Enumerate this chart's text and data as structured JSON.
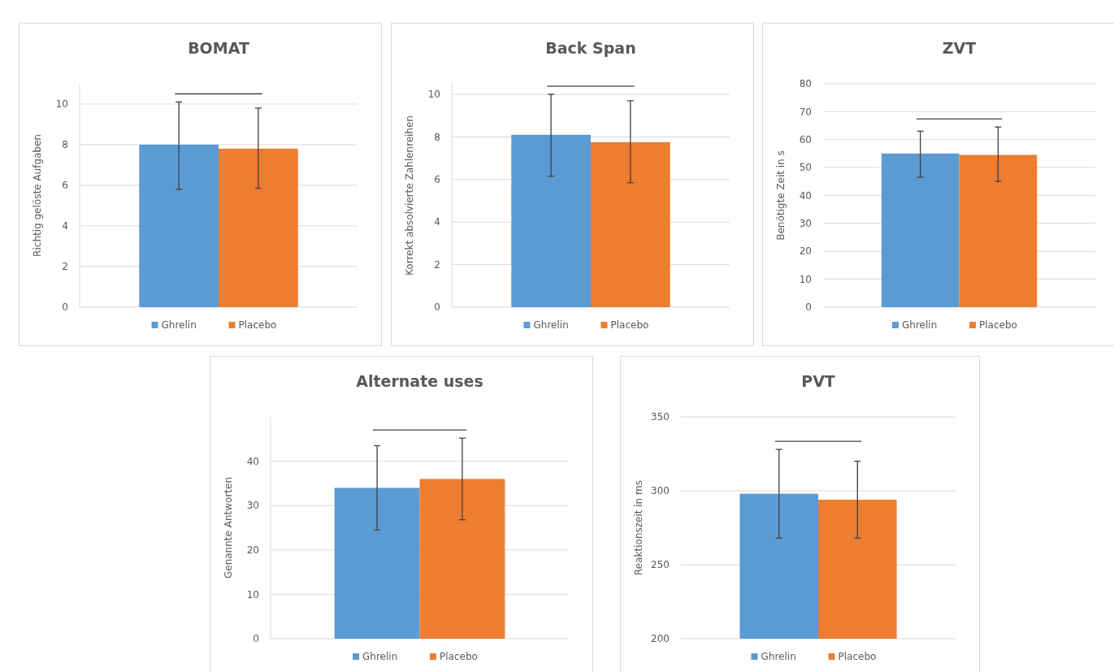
{
  "chart_data": [
    {
      "type": "bar",
      "title": "BOMAT",
      "ylabel": "Richtig gelöste Aufgaben",
      "categories": [
        null
      ],
      "ylim": [
        0,
        11
      ],
      "yticks": [
        0,
        2,
        4,
        6,
        8,
        10
      ],
      "grid": "y",
      "legend": "bottom",
      "series": [
        {
          "name": "Ghrelin",
          "color": "#5b9bd5",
          "values": [
            8.0
          ],
          "errors": [
            [
              5.8,
              10.1
            ]
          ]
        },
        {
          "name": "Placebo",
          "color": "#ed7d31",
          "values": [
            7.8
          ],
          "errors": [
            [
              5.85,
              9.8
            ]
          ]
        }
      ]
    },
    {
      "type": "bar",
      "title": "Back Span",
      "ylabel": "Korrekt absolvierte Zahlenreihen",
      "categories": [
        null
      ],
      "ylim": [
        0,
        10.5
      ],
      "yticks": [
        0,
        2,
        4,
        6,
        8,
        10
      ],
      "grid": "y",
      "legend": "bottom",
      "series": [
        {
          "name": "Ghrelin",
          "color": "#5b9bd5",
          "values": [
            8.1
          ],
          "errors": [
            [
              6.15,
              10.0
            ]
          ]
        },
        {
          "name": "Placebo",
          "color": "#ed7d31",
          "values": [
            7.75
          ],
          "errors": [
            [
              5.85,
              9.7
            ]
          ]
        }
      ]
    },
    {
      "type": "bar",
      "title": "ZVT",
      "ylabel": "Benötigte Zeit in s",
      "categories": [
        null
      ],
      "ylim": [
        0,
        80
      ],
      "yticks": [
        0,
        10,
        20,
        30,
        40,
        50,
        60,
        70,
        80
      ],
      "grid": "y",
      "legend": "bottom",
      "series": [
        {
          "name": "Ghrelin",
          "color": "#5b9bd5",
          "values": [
            55
          ],
          "errors": [
            [
              46.5,
              63
            ]
          ]
        },
        {
          "name": "Placebo",
          "color": "#ed7d31",
          "values": [
            54.5
          ],
          "errors": [
            [
              45,
              64.5
            ]
          ]
        }
      ]
    },
    {
      "type": "bar",
      "title": "Alternate uses",
      "ylabel": "Genannte Antworten",
      "categories": [
        null
      ],
      "ylim": [
        0,
        50
      ],
      "yticks": [
        0,
        10,
        20,
        30,
        40
      ],
      "grid": "y",
      "legend": "bottom",
      "series": [
        {
          "name": "Ghrelin",
          "color": "#5b9bd5",
          "values": [
            34
          ],
          "errors": [
            [
              24.5,
              43.5
            ]
          ]
        },
        {
          "name": "Placebo",
          "color": "#ed7d31",
          "values": [
            36
          ],
          "errors": [
            [
              26.8,
              45.2
            ]
          ]
        }
      ]
    },
    {
      "type": "bar",
      "title": "PVT",
      "ylabel": "Reaktionszeit in ms",
      "categories": [
        null
      ],
      "ylim": [
        200,
        350
      ],
      "yticks": [
        200,
        250,
        300,
        350
      ],
      "grid": "y",
      "legend": "bottom",
      "series": [
        {
          "name": "Ghrelin",
          "color": "#5b9bd5",
          "values": [
            298
          ],
          "errors": [
            [
              268,
              328
            ]
          ]
        },
        {
          "name": "Placebo",
          "color": "#ed7d31",
          "values": [
            294
          ],
          "errors": [
            [
              268,
              320
            ]
          ]
        }
      ]
    }
  ]
}
